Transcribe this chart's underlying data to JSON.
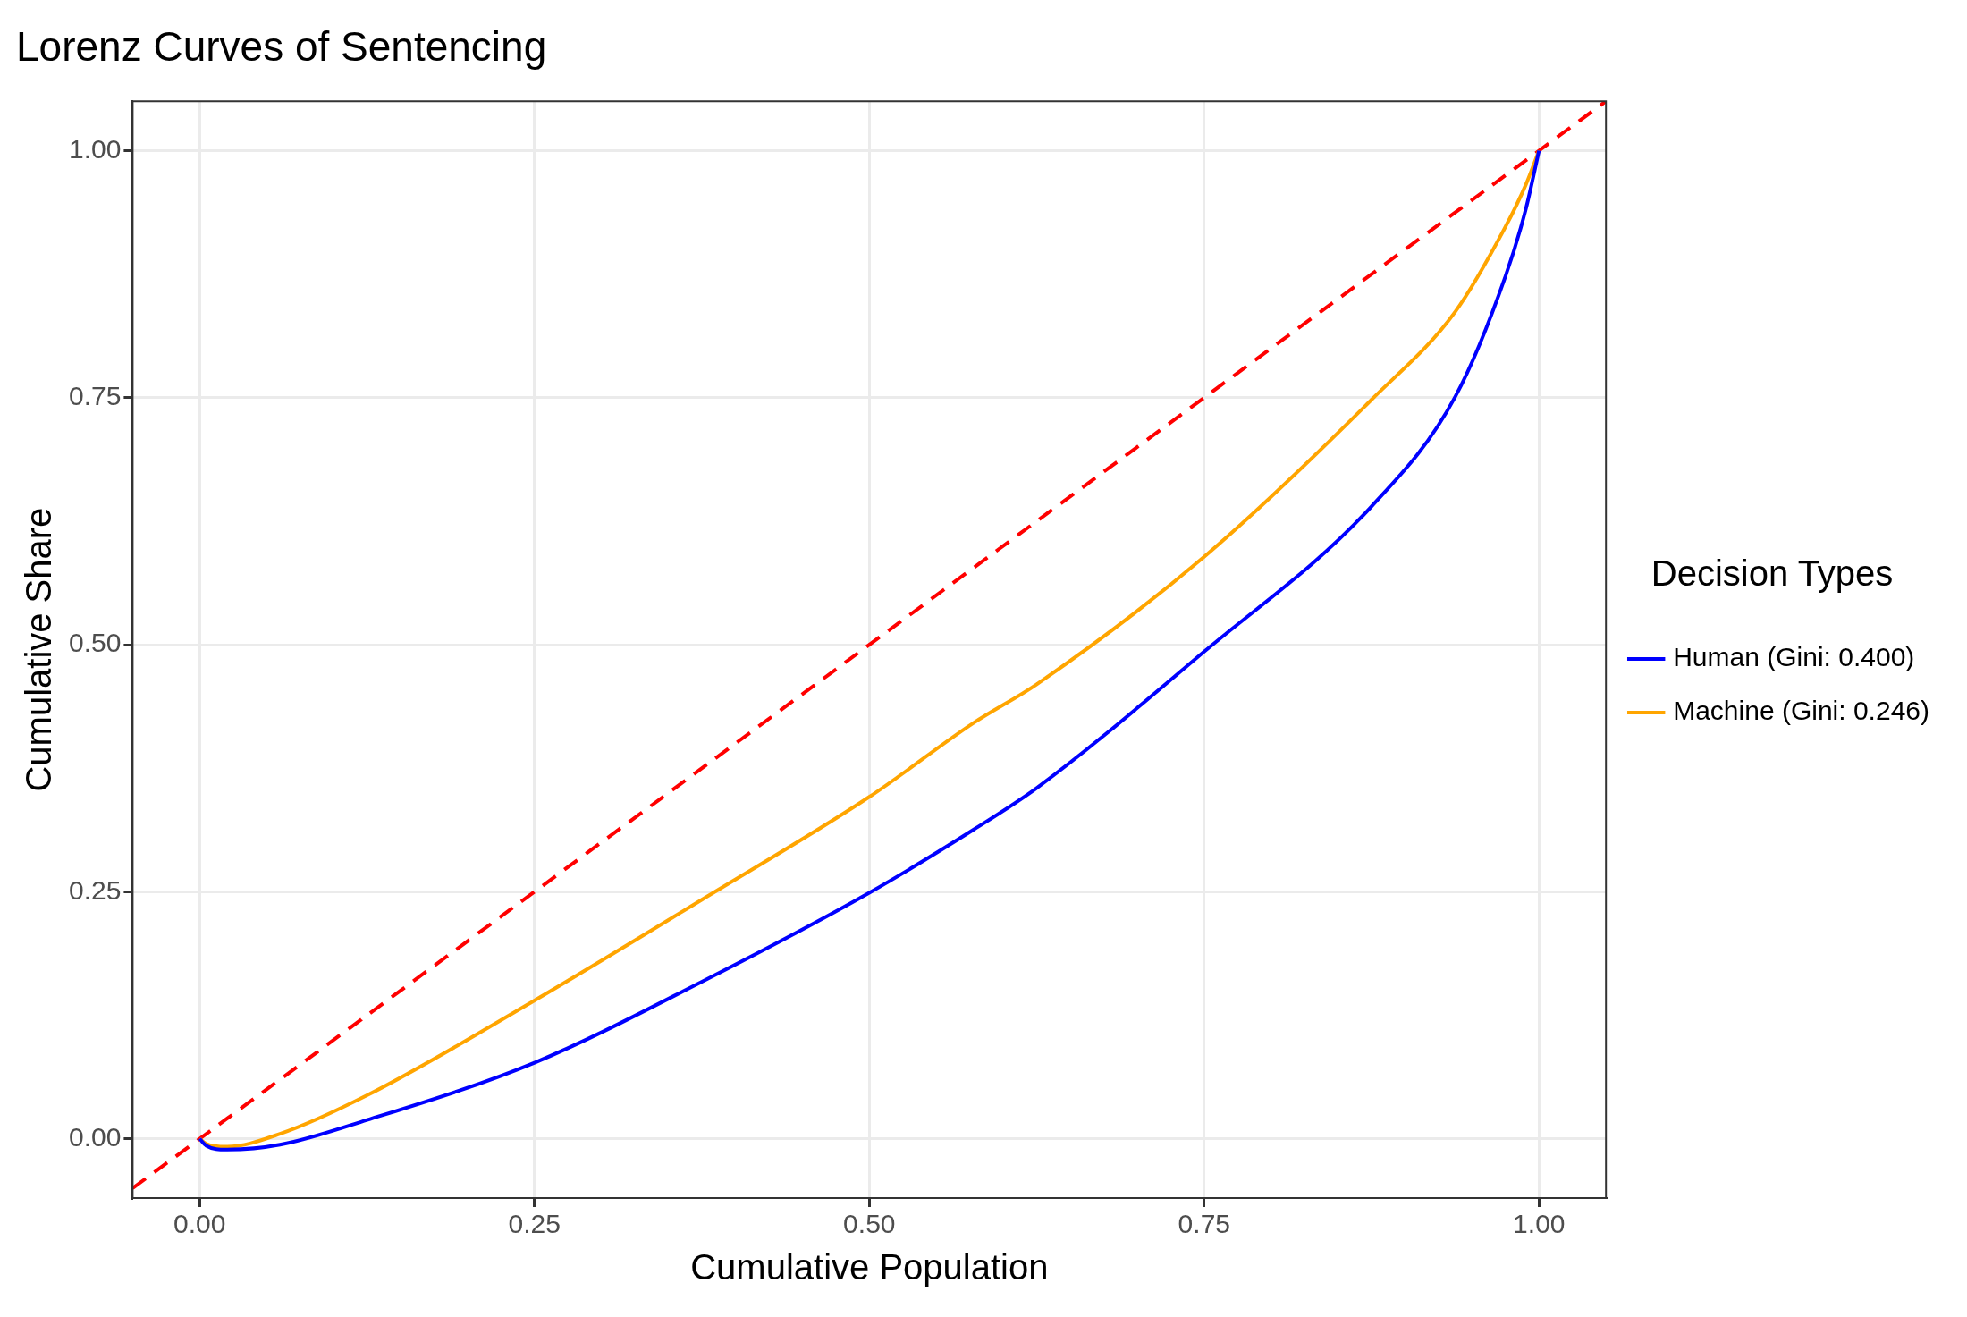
{
  "chart_data": {
    "type": "line",
    "title": "Lorenz Curves of Sentencing",
    "xlabel": "Cumulative Population",
    "ylabel": "Cumulative Share",
    "legend_title": "Decision Types",
    "legend": "right",
    "grid": true,
    "marker": "none",
    "xlim": [
      -0.05,
      1.05
    ],
    "ylim": [
      -0.06,
      1.05
    ],
    "xticks": [
      {
        "value": 0,
        "label": "0.00"
      },
      {
        "value": 0.25,
        "label": "0.25"
      },
      {
        "value": 0.5,
        "label": "0.50"
      },
      {
        "value": 0.75,
        "label": "0.75"
      },
      {
        "value": 1,
        "label": "1.00"
      }
    ],
    "yticks": [
      {
        "value": 0,
        "label": "0.00"
      },
      {
        "value": 0.25,
        "label": "0.25"
      },
      {
        "value": 0.5,
        "label": "0.50"
      },
      {
        "value": 0.75,
        "label": "0.75"
      },
      {
        "value": 1,
        "label": "1.00"
      }
    ],
    "series": [
      {
        "name": "Human (Gini: 0.400)",
        "color": "#0000ff",
        "line_style": "solid",
        "x": [
          0,
          0.005,
          0.02,
          0.06,
          0.125,
          0.25,
          0.375,
          0.5,
          0.578,
          0.625,
          0.75,
          0.875,
          0.9375,
          0.975,
          0.99,
          1
        ],
        "values": [
          0,
          -0.007,
          -0.011,
          -0.006,
          0.019,
          0.077,
          0.159,
          0.249,
          0.313,
          0.355,
          0.493,
          0.64,
          0.751,
          0.873,
          0.94,
          1
        ]
      },
      {
        "name": "Machine (Gini: 0.246)",
        "color": "#ffa500",
        "line_style": "solid",
        "x": [
          0,
          0.005,
          0.02,
          0.06,
          0.125,
          0.25,
          0.375,
          0.5,
          0.578,
          0.625,
          0.75,
          0.875,
          0.9375,
          0.975,
          0.99,
          1
        ],
        "values": [
          0,
          -0.005,
          -0.008,
          0.005,
          0.044,
          0.14,
          0.242,
          0.346,
          0.421,
          0.46,
          0.589,
          0.748,
          0.837,
          0.923,
          0.965,
          1
        ]
      },
      {
        "color": "#ff0000",
        "line_style": "dashed",
        "x": [
          -0.05,
          1.05
        ],
        "values": [
          -0.05,
          1.05
        ]
      }
    ]
  }
}
